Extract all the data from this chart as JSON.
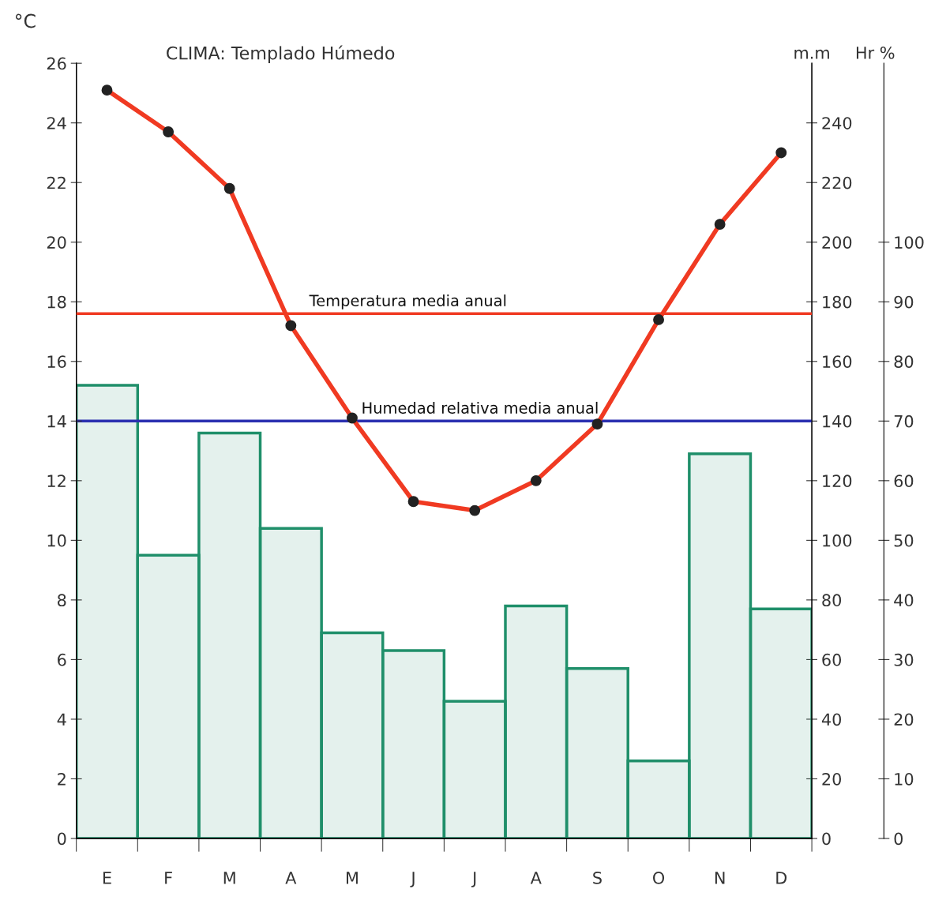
{
  "chart_data": {
    "type": "bar",
    "subtitle": "CLIMA: Templado Húmedo",
    "ylabel": "°C",
    "y2label": "m.m",
    "y3label": "Hr %",
    "categories": [
      "E",
      "F",
      "M",
      "A",
      "M",
      "J",
      "J",
      "A",
      "S",
      "O",
      "N",
      "D"
    ],
    "series": [
      {
        "axis": "y2",
        "color": "#1f8f6a",
        "values": [
          152,
          95,
          136,
          104,
          69,
          63,
          46,
          78,
          57,
          26,
          129,
          77
        ]
      },
      {
        "type": "line",
        "axis": "y",
        "color": "#f03a22",
        "marker": "circle",
        "line_style": "solid",
        "values": [
          25.1,
          23.7,
          21.8,
          17.2,
          14.1,
          11.3,
          11.0,
          12.0,
          13.9,
          17.4,
          20.6,
          23.0
        ]
      }
    ],
    "ylim": [
      0,
      26
    ],
    "yticks": [
      0,
      2,
      4,
      6,
      8,
      10,
      12,
      14,
      16,
      18,
      20,
      22,
      24,
      26
    ],
    "y2lim": [
      0,
      260
    ],
    "y2ticks": [
      0,
      20,
      40,
      60,
      80,
      100,
      120,
      140,
      160,
      180,
      200,
      220,
      240
    ],
    "y3lim": [
      0,
      130
    ],
    "y3ticks": [
      0,
      10,
      20,
      30,
      40,
      50,
      60,
      70,
      80,
      90,
      100
    ],
    "ref_lines": [
      {
        "axis": "y",
        "value": 17.6,
        "label": "Temperatura media anual",
        "color": "#f03a22"
      },
      {
        "axis": "y3",
        "value": 70,
        "label": "Humedad relativa media anual",
        "color": "#2a2fb0"
      }
    ],
    "grid": false,
    "legend": false
  }
}
